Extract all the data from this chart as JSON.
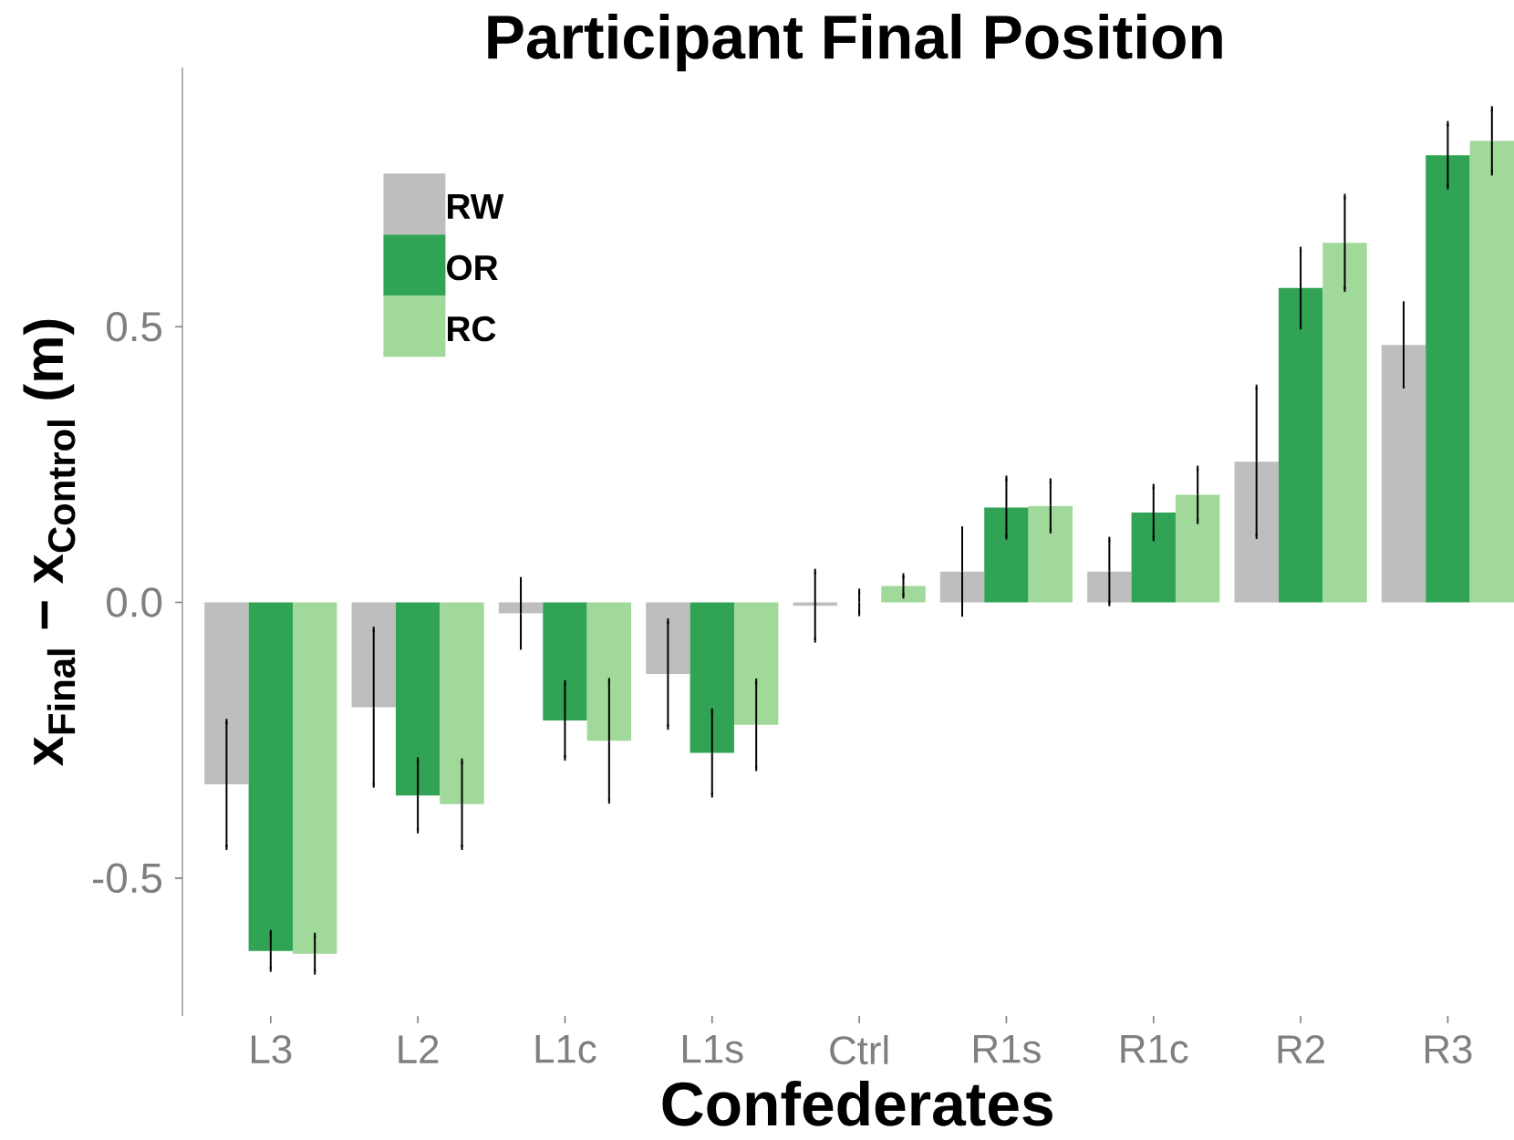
{
  "chart_data": {
    "type": "bar",
    "title": "Participant Final Position",
    "xlabel": "Confederates",
    "ylabel": "x$_{Final}$ − x$_{Control}$ (m)",
    "categories": [
      "L3",
      "L2",
      "L1c",
      "L1s",
      "Ctrl",
      "R1s",
      "R1c",
      "R2",
      "R3"
    ],
    "series": [
      {
        "name": "RW",
        "color": "#bebebe",
        "values": [
          -0.33,
          -0.19,
          -0.02,
          -0.13,
          -0.006,
          0.056,
          0.056,
          0.255,
          0.467
        ],
        "errors": [
          0.114,
          0.141,
          0.061,
          0.096,
          0.062,
          0.077,
          0.058,
          0.135,
          0.074
        ]
      },
      {
        "name": "OR",
        "color": "#31a354",
        "values": [
          -0.632,
          -0.35,
          -0.214,
          -0.273,
          0,
          0.172,
          0.163,
          0.57,
          0.811
        ],
        "errors": [
          0.033,
          0.064,
          0.068,
          0.076,
          0.02,
          0.053,
          0.047,
          0.07,
          0.057
        ]
      },
      {
        "name": "RC",
        "color": "#a1d99b",
        "values": [
          -0.637,
          -0.366,
          -0.251,
          -0.222,
          0.03,
          0.175,
          0.195,
          0.652,
          0.837
        ],
        "errors": [
          0.033,
          0.078,
          0.109,
          0.079,
          0.018,
          0.045,
          0.048,
          0.084,
          0.058
        ]
      }
    ],
    "ylim": [
      -0.75,
      0.97
    ],
    "yticks": [
      -0.5,
      {
        "value": 0,
        "label": "0.0"
      },
      0.5
    ],
    "legend": "top left"
  }
}
